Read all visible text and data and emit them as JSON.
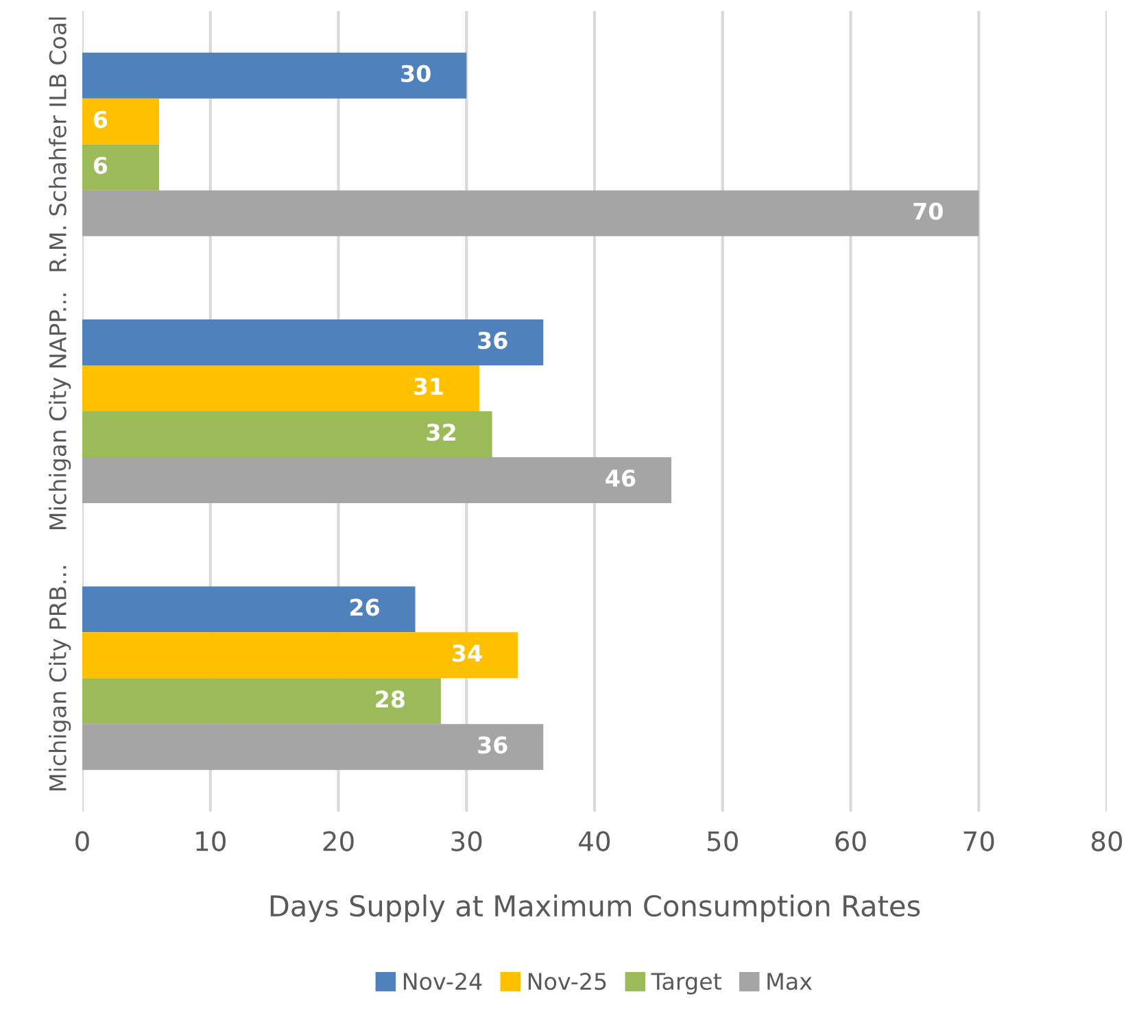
{
  "chart_data": {
    "type": "bar",
    "orientation": "horizontal",
    "xlabel": "Days Supply at Maximum Consumption Rates",
    "categories": [
      "R.M. Schahfer ILB Coal",
      "Michigan City NAPP...",
      "Michigan City PRB..."
    ],
    "series": [
      {
        "name": "Nov-24",
        "color": "#4f81bd",
        "values": [
          30,
          36,
          26
        ]
      },
      {
        "name": "Nov-25",
        "color": "#ffc000",
        "values": [
          6,
          31,
          34
        ]
      },
      {
        "name": "Target",
        "color": "#9bbb59",
        "values": [
          6,
          32,
          28
        ]
      },
      {
        "name": "Max",
        "color": "#a5a5a5",
        "values": [
          70,
          46,
          36
        ]
      }
    ],
    "xlim": [
      0,
      80
    ],
    "xticks": [
      0,
      10,
      20,
      30,
      40,
      50,
      60,
      70,
      80
    ],
    "grid": "x",
    "legend": "bottom",
    "data_labels": true
  }
}
